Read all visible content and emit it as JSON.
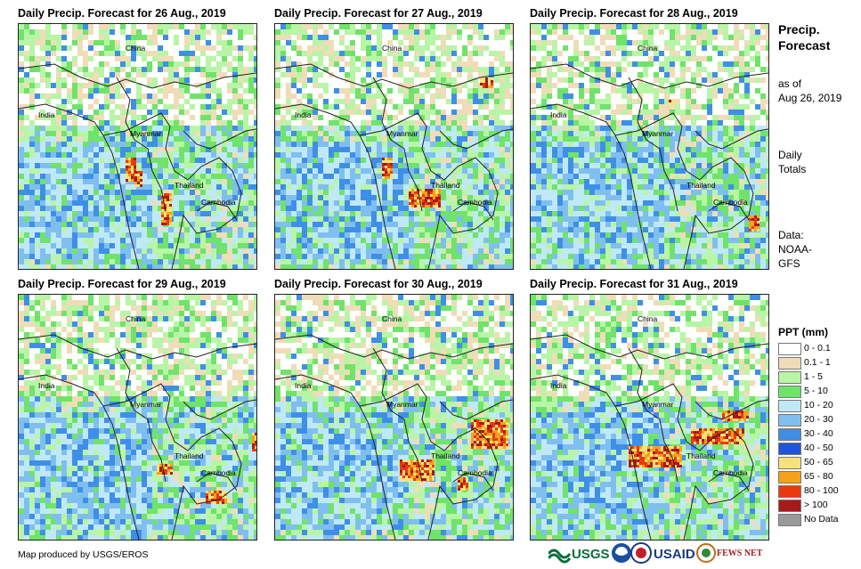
{
  "panels": [
    {
      "title": "Daily Precip. Forecast for 26 Aug., 2019",
      "seed": 11,
      "heavy": [
        [
          120,
          150,
          12,
          26
        ],
        [
          160,
          190,
          10,
          36
        ],
        [
          130,
          165,
          8,
          18
        ]
      ]
    },
    {
      "title": "Daily Precip. Forecast for 27 Aug., 2019",
      "seed": 23,
      "heavy": [
        [
          120,
          150,
          10,
          24
        ],
        [
          150,
          185,
          34,
          20
        ],
        [
          230,
          60,
          14,
          10
        ]
      ]
    },
    {
      "title": "Daily Precip. Forecast for 28 Aug., 2019",
      "seed": 37,
      "heavy": [
        [
          245,
          215,
          12,
          16
        ],
        [
          155,
          85,
          4,
          6
        ]
      ]
    },
    {
      "title": "Daily Precip. Forecast for 29 Aug., 2019",
      "seed": 41,
      "heavy": [
        [
          155,
          190,
          16,
          12
        ],
        [
          210,
          220,
          22,
          14
        ],
        [
          262,
          155,
          12,
          20
        ]
      ]
    },
    {
      "title": "Daily Precip. Forecast for 30 Aug., 2019",
      "seed": 53,
      "heavy": [
        [
          220,
          140,
          42,
          32
        ],
        [
          140,
          185,
          38,
          24
        ],
        [
          205,
          205,
          12,
          14
        ]
      ]
    },
    {
      "title": "Daily Precip. Forecast for 31 Aug., 2019",
      "seed": 67,
      "heavy": [
        [
          110,
          170,
          60,
          22
        ],
        [
          180,
          150,
          60,
          16
        ],
        [
          215,
          130,
          30,
          10
        ]
      ]
    }
  ],
  "map_labels": {
    "china": "China",
    "india": "India",
    "myanmar": "Myanmar",
    "thailand": "Thailand",
    "cambodia": "Cambodia"
  },
  "side": {
    "title_line1": "Precip.",
    "title_line2": "Forecast",
    "asof_line1": "as of",
    "asof_line2": "Aug 26, 2019",
    "daily_line1": "Daily",
    "daily_line2": "Totals",
    "data_line1": "Data:",
    "data_line2": "NOAA-",
    "data_line3": "GFS"
  },
  "legend": {
    "title": "PPT (mm)",
    "items": [
      {
        "label": "0 - 0.1",
        "color": "#ffffff"
      },
      {
        "label": "0.1 - 1",
        "color": "#f1dcb8"
      },
      {
        "label": "1 - 5",
        "color": "#b8f5a6"
      },
      {
        "label": "5 - 10",
        "color": "#6fe36a"
      },
      {
        "label": "10 - 20",
        "color": "#bfe9f7"
      },
      {
        "label": "20 - 30",
        "color": "#7fbff0"
      },
      {
        "label": "30 - 40",
        "color": "#3f8fe8"
      },
      {
        "label": "40 - 50",
        "color": "#1f55d8"
      },
      {
        "label": "50 - 65",
        "color": "#f7e27a"
      },
      {
        "label": "65 - 80",
        "color": "#f5a21a"
      },
      {
        "label": "80 - 100",
        "color": "#e83a0e"
      },
      {
        "label": "> 100",
        "color": "#a81a1a"
      },
      {
        "label": "No Data",
        "color": "#9a9a9a"
      }
    ]
  },
  "credit": "Map produced by USGS/EROS",
  "logos": {
    "usgs": "USGS",
    "usaid": "USAID",
    "fewsnet": "FEWS NET"
  }
}
